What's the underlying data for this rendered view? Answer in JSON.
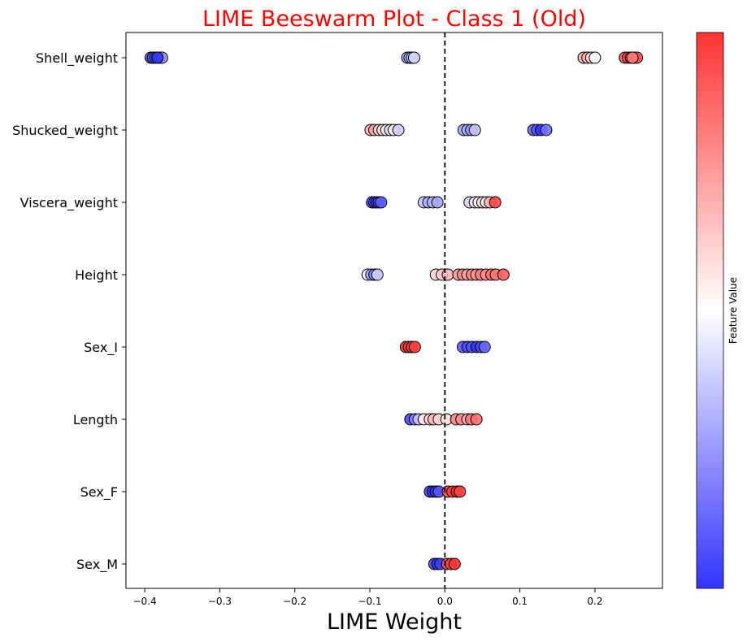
{
  "chart_data": {
    "type": "scatter",
    "subtype": "beeswarm",
    "title": "LIME Beeswarm Plot - Class 1 (Old)",
    "xlabel": "LIME Weight",
    "ylabel": "",
    "colorbar_label": "Feature Value",
    "xlim": [
      -0.425,
      0.29
    ],
    "xticks": [
      -0.4,
      -0.3,
      -0.2,
      -0.1,
      0.0,
      0.1,
      0.2
    ],
    "xtick_labels": [
      "−0.4",
      "−0.3",
      "−0.2",
      "−0.1",
      "0.0",
      "0.1",
      "0.2"
    ],
    "reference_line_x": 0.0,
    "grid": false,
    "colormap": [
      "#3333ff",
      "#ffffff",
      "#ff3333"
    ],
    "colors": {
      "title": "#ff0000",
      "marker_edge": "#000000",
      "reference_line": "#000000"
    },
    "features": [
      "Shell_weight",
      "Shucked_weight",
      "Viscera_weight",
      "Height",
      "Sex_I",
      "Length",
      "Sex_F",
      "Sex_M"
    ],
    "series": [
      {
        "name": "Shell_weight",
        "points": [
          {
            "x": -0.392,
            "v": 0.08
          },
          {
            "x": -0.389,
            "v": 0.1
          },
          {
            "x": -0.386,
            "v": 0.05
          },
          {
            "x": -0.383,
            "v": 0.12
          },
          {
            "x": -0.38,
            "v": 0.2
          },
          {
            "x": -0.377,
            "v": 0.25
          },
          {
            "x": -0.383,
            "v": 0.0
          },
          {
            "x": -0.05,
            "v": 0.3
          },
          {
            "x": -0.047,
            "v": 0.35
          },
          {
            "x": -0.044,
            "v": 0.28
          },
          {
            "x": -0.041,
            "v": 0.4
          },
          {
            "x": 0.185,
            "v": 0.7
          },
          {
            "x": 0.19,
            "v": 0.68
          },
          {
            "x": 0.195,
            "v": 0.6
          },
          {
            "x": 0.2,
            "v": 0.5
          },
          {
            "x": 0.24,
            "v": 0.92
          },
          {
            "x": 0.244,
            "v": 0.95
          },
          {
            "x": 0.248,
            "v": 0.9
          },
          {
            "x": 0.252,
            "v": 0.97
          },
          {
            "x": 0.256,
            "v": 0.93
          },
          {
            "x": 0.25,
            "v": 0.82
          }
        ]
      },
      {
        "name": "Shucked_weight",
        "points": [
          {
            "x": -0.099,
            "v": 0.68
          },
          {
            "x": -0.094,
            "v": 0.72
          },
          {
            "x": -0.088,
            "v": 0.62
          },
          {
            "x": -0.083,
            "v": 0.58
          },
          {
            "x": -0.078,
            "v": 0.5
          },
          {
            "x": -0.073,
            "v": 0.42
          },
          {
            "x": -0.068,
            "v": 0.55
          },
          {
            "x": -0.062,
            "v": 0.38
          },
          {
            "x": 0.025,
            "v": 0.28
          },
          {
            "x": 0.03,
            "v": 0.3
          },
          {
            "x": 0.035,
            "v": 0.25
          },
          {
            "x": 0.04,
            "v": 0.35
          },
          {
            "x": 0.118,
            "v": 0.12
          },
          {
            "x": 0.123,
            "v": 0.1
          },
          {
            "x": 0.128,
            "v": 0.0
          },
          {
            "x": 0.135,
            "v": 0.15
          }
        ]
      },
      {
        "name": "Viscera_weight",
        "points": [
          {
            "x": -0.097,
            "v": 0.06
          },
          {
            "x": -0.094,
            "v": 0.03
          },
          {
            "x": -0.091,
            "v": 0.0
          },
          {
            "x": -0.088,
            "v": 0.05
          },
          {
            "x": -0.085,
            "v": 0.1
          },
          {
            "x": -0.028,
            "v": 0.36
          },
          {
            "x": -0.022,
            "v": 0.3
          },
          {
            "x": -0.016,
            "v": 0.32
          },
          {
            "x": -0.01,
            "v": 0.28
          },
          {
            "x": 0.033,
            "v": 0.4
          },
          {
            "x": 0.04,
            "v": 0.55
          },
          {
            "x": 0.045,
            "v": 0.48
          },
          {
            "x": 0.05,
            "v": 0.6
          },
          {
            "x": 0.055,
            "v": 0.52
          },
          {
            "x": 0.06,
            "v": 0.7
          },
          {
            "x": 0.067,
            "v": 0.95
          }
        ]
      },
      {
        "name": "Height",
        "points": [
          {
            "x": -0.103,
            "v": 0.45
          },
          {
            "x": -0.098,
            "v": 0.3
          },
          {
            "x": -0.094,
            "v": 0.2
          },
          {
            "x": -0.09,
            "v": 0.38
          },
          {
            "x": -0.012,
            "v": 0.6
          },
          {
            "x": -0.004,
            "v": 0.62
          },
          {
            "x": 0.004,
            "v": 0.68
          },
          {
            "x": 0.018,
            "v": 0.75
          },
          {
            "x": 0.024,
            "v": 0.78
          },
          {
            "x": 0.03,
            "v": 0.72
          },
          {
            "x": 0.036,
            "v": 0.8
          },
          {
            "x": 0.042,
            "v": 0.74
          },
          {
            "x": 0.048,
            "v": 0.82
          },
          {
            "x": 0.055,
            "v": 0.77
          },
          {
            "x": 0.062,
            "v": 0.85
          },
          {
            "x": 0.068,
            "v": 0.83
          },
          {
            "x": 0.078,
            "v": 0.9
          }
        ]
      },
      {
        "name": "Sex_I",
        "points": [
          {
            "x": -0.052,
            "v": 1.0
          },
          {
            "x": -0.048,
            "v": 0.98
          },
          {
            "x": -0.044,
            "v": 1.0
          },
          {
            "x": -0.04,
            "v": 0.97
          },
          {
            "x": 0.024,
            "v": 0.1
          },
          {
            "x": 0.03,
            "v": 0.05
          },
          {
            "x": 0.036,
            "v": 0.08
          },
          {
            "x": 0.042,
            "v": 0.0
          },
          {
            "x": 0.048,
            "v": 0.06
          },
          {
            "x": 0.053,
            "v": 0.12
          }
        ]
      },
      {
        "name": "Length",
        "points": [
          {
            "x": -0.046,
            "v": 0.05
          },
          {
            "x": -0.04,
            "v": 0.2
          },
          {
            "x": -0.035,
            "v": 0.35
          },
          {
            "x": -0.028,
            "v": 0.55
          },
          {
            "x": -0.02,
            "v": 0.62
          },
          {
            "x": -0.015,
            "v": 0.68
          },
          {
            "x": -0.008,
            "v": 0.6
          },
          {
            "x": 0.002,
            "v": 0.58
          },
          {
            "x": 0.015,
            "v": 0.8
          },
          {
            "x": 0.022,
            "v": 0.78
          },
          {
            "x": 0.03,
            "v": 0.72
          },
          {
            "x": 0.035,
            "v": 0.83
          },
          {
            "x": 0.042,
            "v": 0.85
          }
        ]
      },
      {
        "name": "Sex_F",
        "points": [
          {
            "x": -0.02,
            "v": 0.05
          },
          {
            "x": -0.016,
            "v": 0.0
          },
          {
            "x": -0.012,
            "v": 0.02
          },
          {
            "x": -0.008,
            "v": 0.08
          },
          {
            "x": 0.004,
            "v": 0.95
          },
          {
            "x": 0.01,
            "v": 0.98
          },
          {
            "x": 0.016,
            "v": 1.0
          },
          {
            "x": 0.02,
            "v": 0.97
          }
        ]
      },
      {
        "name": "Sex_M",
        "points": [
          {
            "x": -0.014,
            "v": 0.06
          },
          {
            "x": -0.01,
            "v": 0.0
          },
          {
            "x": -0.006,
            "v": 0.03
          },
          {
            "x": 0.003,
            "v": 0.92
          },
          {
            "x": 0.008,
            "v": 0.97
          },
          {
            "x": 0.013,
            "v": 1.0
          }
        ]
      }
    ]
  }
}
